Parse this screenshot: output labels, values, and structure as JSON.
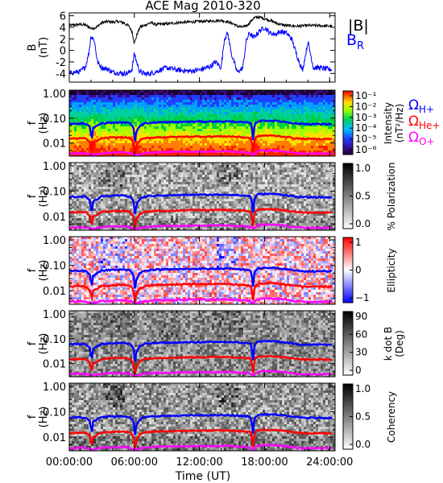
{
  "title": "ACE Mag 2010-320",
  "x_axis": {
    "label": "Time (UT)",
    "ticks": [
      "00:00:00",
      "06:00:00",
      "12:00:00",
      "18:00:00",
      "24:00:00"
    ],
    "hours": [
      0,
      6,
      12,
      18,
      24
    ],
    "range_hours": [
      0,
      24.5
    ]
  },
  "chart_data": [
    {
      "type": "line",
      "name": "magnetic-field",
      "ylabel": "B (nT)",
      "yticks": [
        -4,
        -2,
        0,
        2,
        4,
        6
      ],
      "ylim": [
        -5.5,
        6.5
      ],
      "legend": [
        {
          "label": "|B|",
          "color": "#000000"
        },
        {
          "label": "B_R",
          "color": "#0000ff"
        }
      ],
      "series": [
        {
          "name": "|B|",
          "color": "#000000",
          "x": [
            0,
            1,
            1.5,
            2,
            2.5,
            3,
            3.5,
            4,
            4.5,
            5,
            5.5,
            5.8,
            6,
            6.2,
            6.5,
            7,
            7.5,
            8,
            9,
            10,
            11,
            12,
            13,
            14,
            14.5,
            15,
            15.5,
            16,
            16.5,
            17,
            17.5,
            18,
            18.5,
            19,
            19.5,
            20,
            21,
            22,
            23,
            24
          ],
          "y": [
            4.3,
            4.5,
            4.4,
            3.8,
            4.0,
            4.8,
            5.0,
            4.9,
            5.0,
            4.8,
            4.2,
            3.2,
            1.2,
            2.5,
            4.0,
            4.4,
            4.8,
            4.5,
            4.6,
            4.8,
            4.9,
            5.0,
            5.1,
            5.2,
            5.0,
            4.7,
            4.2,
            4.0,
            4.5,
            5.6,
            5.8,
            5.5,
            5.2,
            4.8,
            4.5,
            4.3,
            4.2,
            4.3,
            4.3,
            4.2
          ]
        },
        {
          "name": "B_R",
          "color": "#0000ff",
          "x": [
            0,
            0.5,
            1,
            1.5,
            1.8,
            2,
            2.3,
            2.6,
            3,
            3.5,
            4,
            5,
            5.5,
            5.8,
            6,
            6.2,
            6.5,
            7,
            7.5,
            8,
            8.5,
            9,
            10,
            11,
            12,
            13,
            13.5,
            14,
            14.3,
            14.6,
            15,
            15.5,
            16,
            16.3,
            16.6,
            17,
            17.5,
            18,
            18.5,
            19,
            19.5,
            20,
            20.5,
            21,
            21.5,
            22,
            22.5,
            23,
            24
          ],
          "y": [
            -4.0,
            -3.8,
            -3.7,
            -2.8,
            -0.5,
            2.5,
            1.8,
            -2.0,
            -3.0,
            -3.2,
            -3.8,
            -4.0,
            -3.9,
            -3.2,
            -0.5,
            -2.0,
            -3.7,
            -4.1,
            -4.0,
            -3.7,
            -3.3,
            -3.0,
            -3.4,
            -3.6,
            -3.4,
            -2.8,
            -2.0,
            -3.0,
            2.0,
            3.0,
            -1.0,
            -3.8,
            -3.0,
            1.5,
            3.0,
            2.2,
            3.3,
            4.0,
            3.0,
            2.8,
            3.3,
            3.0,
            2.0,
            -1.0,
            -3.5,
            1.5,
            -3.0,
            -3.0,
            -3.3
          ]
        }
      ]
    },
    {
      "type": "heatmap",
      "name": "intensity",
      "ylabel": "f (Hz)",
      "yticks": [
        "1.00",
        "0.10",
        "0.01"
      ],
      "colorbar": {
        "label": "Intensity (nT²/Hz)",
        "scale": "rainbow",
        "ticks": [
          "10⁻¹",
          "10⁻²",
          "10⁻³",
          "10⁻⁴",
          "10⁻⁵",
          "10⁻⁶"
        ]
      },
      "legend": [
        {
          "label": "Ω_H+",
          "color": "#0000ff"
        },
        {
          "label": "Ω_He+",
          "color": "#ff0000"
        },
        {
          "label": "Ω_O+",
          "color": "#ff00ff"
        }
      ]
    },
    {
      "type": "heatmap",
      "name": "polarization",
      "ylabel": "f (Hz)",
      "yticks": [
        "1.00",
        "0.10",
        "0.01"
      ],
      "colorbar": {
        "label": "% Polarization",
        "scale": "gray",
        "ticks": [
          "1.0",
          "0.5",
          "0.0"
        ]
      }
    },
    {
      "type": "heatmap",
      "name": "ellipticity",
      "ylabel": "f (Hz)",
      "yticks": [
        "1.00",
        "0.10",
        "0.01"
      ],
      "colorbar": {
        "label": "Ellipticity",
        "scale": "bwr",
        "ticks": [
          "1",
          "0",
          "−1"
        ]
      }
    },
    {
      "type": "heatmap",
      "name": "kdotb",
      "ylabel": "f (Hz)",
      "yticks": [
        "1.00",
        "0.10",
        "0.01"
      ],
      "colorbar": {
        "label": "k dot B (Deg)",
        "scale": "gray",
        "ticks": [
          "90",
          "60",
          "30",
          "0"
        ]
      }
    },
    {
      "type": "heatmap",
      "name": "coherency",
      "ylabel": "f (Hz)",
      "yticks": [
        "1.00",
        "0.10",
        "0.01"
      ],
      "colorbar": {
        "label": "Coherency",
        "scale": "gray",
        "ticks": [
          "1.0",
          "0.5",
          "0.0"
        ]
      }
    }
  ],
  "gyrofrequency_lines": {
    "hours": [
      0,
      0.5,
      1,
      1.5,
      1.9,
      2.05,
      2.2,
      2.6,
      3,
      3.5,
      4,
      5,
      5.6,
      5.9,
      6.05,
      6.2,
      6.5,
      7,
      8,
      9,
      10,
      11,
      12,
      13,
      14,
      15,
      16,
      16.7,
      16.95,
      17.1,
      17.4,
      18,
      19,
      20,
      21,
      22,
      23,
      24
    ],
    "H_plus_hz": [
      0.06,
      0.06,
      0.062,
      0.06,
      0.045,
      0.009,
      0.04,
      0.05,
      0.062,
      0.065,
      0.066,
      0.068,
      0.062,
      0.045,
      0.012,
      0.03,
      0.05,
      0.062,
      0.068,
      0.069,
      0.07,
      0.072,
      0.073,
      0.073,
      0.074,
      0.073,
      0.068,
      0.065,
      0.012,
      0.06,
      0.075,
      0.08,
      0.078,
      0.07,
      0.06,
      0.058,
      0.058,
      0.058
    ],
    "He_plus_hz": [
      0.015,
      0.015,
      0.0155,
      0.015,
      0.011,
      0.0035,
      0.01,
      0.0125,
      0.0155,
      0.016,
      0.0165,
      0.017,
      0.0155,
      0.011,
      0.0035,
      0.0075,
      0.0125,
      0.0155,
      0.017,
      0.0172,
      0.0175,
      0.018,
      0.0182,
      0.0182,
      0.0185,
      0.0182,
      0.017,
      0.016,
      0.0035,
      0.015,
      0.0188,
      0.02,
      0.0195,
      0.0175,
      0.015,
      0.0145,
      0.0145,
      0.0145
    ],
    "O_plus_hz": [
      0.0038,
      0.0038,
      0.0039,
      0.0038,
      0.0035,
      0.003,
      0.0034,
      0.0036,
      0.0039,
      0.004,
      0.0041,
      0.0042,
      0.0039,
      0.0035,
      0.003,
      0.0033,
      0.0036,
      0.0039,
      0.0042,
      0.0043,
      0.0044,
      0.0045,
      0.0045,
      0.0045,
      0.0046,
      0.0045,
      0.0042,
      0.004,
      0.0031,
      0.0038,
      0.0047,
      0.005,
      0.0049,
      0.0044,
      0.0038,
      0.0037,
      0.0037,
      0.0037
    ]
  },
  "colors": {
    "H_plus": "#0000ff",
    "He_plus": "#ff0000",
    "O_plus": "#ff00ff",
    "B_total": "#000000",
    "B_R": "#0000ff"
  }
}
